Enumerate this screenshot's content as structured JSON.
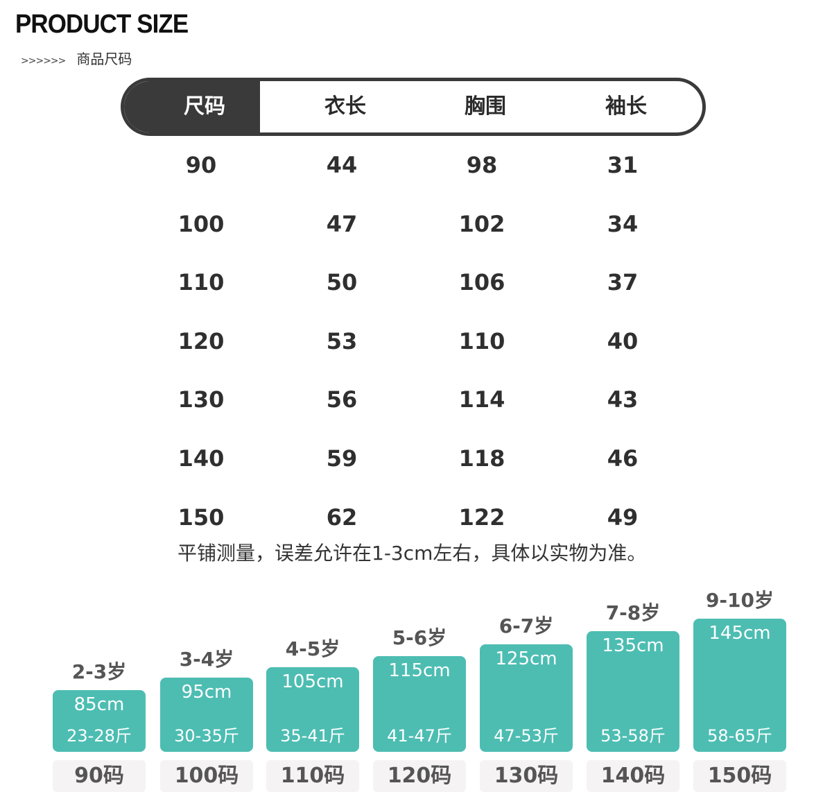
{
  "header": {
    "title": "PRODUCT SIZE",
    "arrows": ">>>>>>",
    "subtitle": "商品尺码"
  },
  "table": {
    "columns": [
      "尺码",
      "衣长",
      "胸围",
      "袖长"
    ],
    "rows": [
      [
        "90",
        "44",
        "98",
        "31"
      ],
      [
        "100",
        "47",
        "102",
        "34"
      ],
      [
        "110",
        "50",
        "106",
        "37"
      ],
      [
        "120",
        "53",
        "110",
        "40"
      ],
      [
        "130",
        "56",
        "114",
        "43"
      ],
      [
        "140",
        "59",
        "118",
        "46"
      ],
      [
        "150",
        "62",
        "122",
        "49"
      ]
    ],
    "note": "平铺测量，误差允许在1-3cm左右，具体以实物为准。"
  },
  "bars": [
    {
      "age": "2-3岁",
      "height": "85cm",
      "weight": "23-28斤",
      "size": "90码"
    },
    {
      "age": "3-4岁",
      "height": "95cm",
      "weight": "30-35斤",
      "size": "100码"
    },
    {
      "age": "4-5岁",
      "height": "105cm",
      "weight": "35-41斤",
      "size": "110码"
    },
    {
      "age": "5-6岁",
      "height": "115cm",
      "weight": "41-47斤",
      "size": "120码"
    },
    {
      "age": "6-7岁",
      "height": "125cm",
      "weight": "47-53斤",
      "size": "130码"
    },
    {
      "age": "7-8岁",
      "height": "135cm",
      "weight": "53-58斤",
      "size": "140码"
    },
    {
      "age": "9-10岁",
      "height": "145cm",
      "weight": "58-65斤",
      "size": "150码"
    }
  ],
  "colors": {
    "header_dark": "#3a3a3a",
    "bar": "#4dbdb2",
    "size_label_bg": "#f5f3f3"
  }
}
